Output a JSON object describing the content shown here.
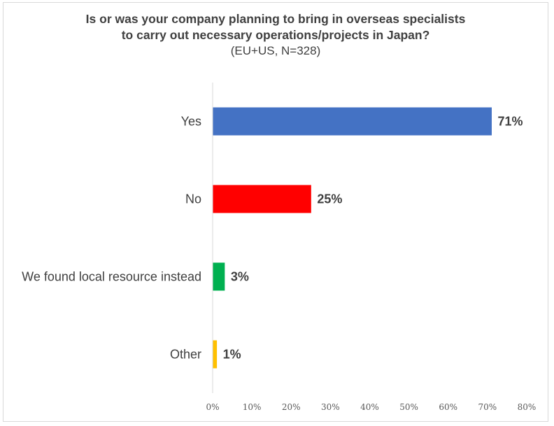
{
  "chart_data": {
    "type": "bar",
    "orientation": "horizontal",
    "title": "Is or was your company planning to bring in overseas specialists to carry out necessary operations/projects in Japan?",
    "title_lines": [
      "Is or was your company planning to bring in overseas specialists",
      "to carry out necessary operations/projects in Japan?"
    ],
    "subtitle": "(EU+US, N=328)",
    "categories": [
      "Yes",
      "No",
      "We found local resource instead",
      "Other"
    ],
    "values": [
      71,
      25,
      3,
      1
    ],
    "data_labels": [
      "71%",
      "25%",
      "3%",
      "1%"
    ],
    "colors": [
      "#4472c4",
      "#ff0000",
      "#00b050",
      "#ffc000"
    ],
    "xlim": [
      0,
      80
    ],
    "xticks": [
      0,
      10,
      20,
      30,
      40,
      50,
      60,
      70,
      80
    ],
    "xtick_labels": [
      "0%",
      "10%",
      "20%",
      "30%",
      "40%",
      "50%",
      "60%",
      "70%",
      "80%"
    ],
    "xlabel": "",
    "ylabel": "",
    "grid": false,
    "legend": "none"
  }
}
